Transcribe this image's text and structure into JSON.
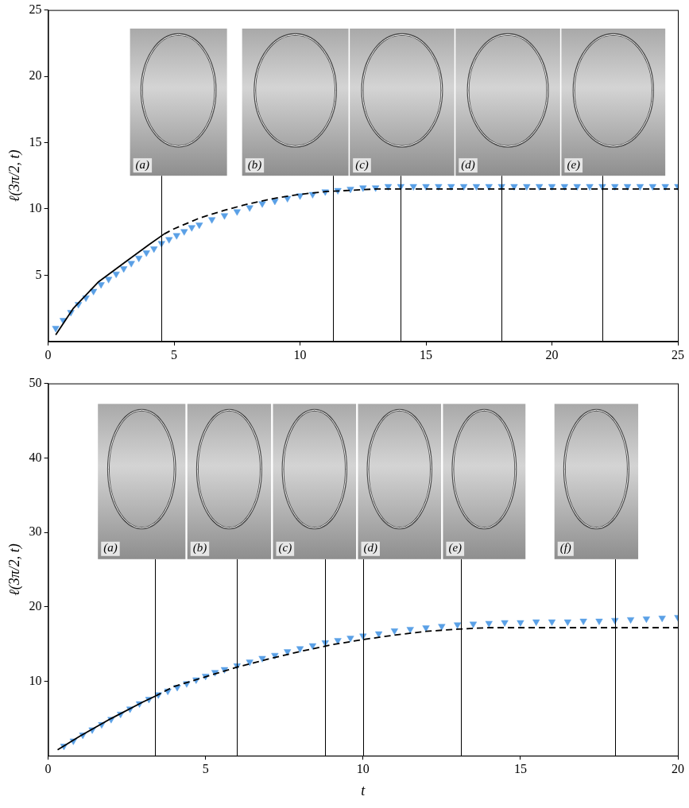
{
  "chart_data": [
    {
      "type": "scatter",
      "y_label": "ℓ(3π/2, t)",
      "xlim": [
        0,
        25
      ],
      "xticks": [
        0,
        5,
        10,
        15,
        20,
        25
      ],
      "ylim": [
        0,
        25
      ],
      "yticks": [
        5,
        10,
        15,
        20,
        25
      ],
      "grid": false,
      "series": [
        {
          "type": "scatter",
          "color": "#5aa0e6",
          "marker": "triangle-down",
          "x": [
            0.3,
            0.6,
            0.9,
            1.2,
            1.5,
            1.8,
            2.1,
            2.4,
            2.7,
            3.0,
            3.3,
            3.6,
            3.9,
            4.2,
            4.5,
            4.8,
            5.1,
            5.4,
            5.7,
            6.0,
            6.5,
            7.0,
            7.5,
            8.0,
            8.5,
            9.0,
            9.5,
            10.0,
            10.5,
            11.0,
            11.5,
            12.0,
            12.5,
            13.0,
            13.5,
            14.0,
            14.5,
            15.0,
            15.5,
            16.0,
            16.5,
            17.0,
            17.5,
            18.0,
            18.5,
            19.0,
            19.5,
            20.0,
            20.5,
            21.0,
            21.5,
            22.0,
            22.5,
            23.0,
            23.5,
            24.0,
            24.5,
            25.0
          ],
          "values": [
            1.0,
            1.6,
            2.2,
            2.8,
            3.3,
            3.8,
            4.3,
            4.7,
            5.1,
            5.5,
            5.9,
            6.3,
            6.7,
            7.0,
            7.4,
            7.7,
            8.0,
            8.3,
            8.6,
            8.8,
            9.2,
            9.5,
            9.8,
            10.1,
            10.4,
            10.6,
            10.8,
            11.0,
            11.1,
            11.3,
            11.4,
            11.5,
            11.6,
            11.6,
            11.7,
            11.7,
            11.7,
            11.7,
            11.7,
            11.7,
            11.7,
            11.7,
            11.7,
            11.7,
            11.7,
            11.7,
            11.7,
            11.7,
            11.7,
            11.7,
            11.7,
            11.7,
            11.7,
            11.7,
            11.7,
            11.7,
            11.7,
            11.7
          ]
        },
        {
          "type": "line",
          "color": "#000000",
          "line_style": "solid",
          "x": [
            0.3,
            1.0,
            2.0,
            3.0,
            4.0,
            4.6
          ],
          "values": [
            0.5,
            2.5,
            4.5,
            5.9,
            7.3,
            8.1
          ]
        },
        {
          "type": "line",
          "color": "#000000",
          "line_style": "dashed",
          "x": [
            4.6,
            5.0,
            6.0,
            7.0,
            8.0,
            9.0,
            10.0,
            11.0,
            12.0,
            13.0,
            14.0,
            25.0
          ],
          "values": [
            8.1,
            8.5,
            9.3,
            9.9,
            10.4,
            10.8,
            11.1,
            11.3,
            11.4,
            11.5,
            11.5,
            11.5
          ]
        }
      ],
      "snapshots": [
        {
          "t": 4.5,
          "label": "(a)"
        },
        {
          "t": 11.3,
          "label": "(b)"
        },
        {
          "t": 14.0,
          "label": "(c)"
        },
        {
          "t": 18.0,
          "label": "(d)"
        },
        {
          "t": 22.0,
          "label": "(e)"
        }
      ]
    },
    {
      "type": "scatter",
      "x_label": "t",
      "y_label": "ℓ(3π/2, t)",
      "xlim": [
        0,
        20
      ],
      "xticks": [
        0,
        5,
        10,
        15,
        20
      ],
      "ylim": [
        0,
        50
      ],
      "yticks": [
        10,
        20,
        30,
        40,
        50
      ],
      "grid": false,
      "series": [
        {
          "type": "scatter",
          "color": "#5aa0e6",
          "marker": "triangle-down",
          "x": [
            0.5,
            0.8,
            1.1,
            1.4,
            1.7,
            2.0,
            2.3,
            2.6,
            2.9,
            3.2,
            3.5,
            3.8,
            4.1,
            4.4,
            4.7,
            5.0,
            5.3,
            5.6,
            6.0,
            6.4,
            6.8,
            7.2,
            7.6,
            8.0,
            8.4,
            8.8,
            9.2,
            9.6,
            10.0,
            10.5,
            11.0,
            11.5,
            12.0,
            12.5,
            13.0,
            13.5,
            14.0,
            14.5,
            15.0,
            15.5,
            16.0,
            16.5,
            17.0,
            17.5,
            18.0,
            18.5,
            19.0,
            19.5,
            20.0
          ],
          "values": [
            1.3,
            2.0,
            2.8,
            3.5,
            4.2,
            4.9,
            5.6,
            6.3,
            7.0,
            7.6,
            8.2,
            8.7,
            9.2,
            9.7,
            10.2,
            10.7,
            11.2,
            11.6,
            12.1,
            12.6,
            13.1,
            13.5,
            14.0,
            14.4,
            14.8,
            15.2,
            15.5,
            15.8,
            16.1,
            16.4,
            16.8,
            17.0,
            17.2,
            17.4,
            17.6,
            17.7,
            17.8,
            17.9,
            17.9,
            18.0,
            18.0,
            18.0,
            18.1,
            18.1,
            18.2,
            18.3,
            18.4,
            18.5,
            18.6
          ]
        },
        {
          "type": "line",
          "color": "#000000",
          "line_style": "solid",
          "x": [
            0.3,
            1.0,
            2.0,
            3.0,
            3.4
          ],
          "values": [
            0.8,
            2.6,
            5.0,
            7.2,
            8.0
          ]
        },
        {
          "type": "line",
          "color": "#000000",
          "line_style": "dashed",
          "x": [
            3.4,
            4.0,
            5.0,
            6.0,
            7.0,
            8.0,
            9.0,
            10.0,
            11.0,
            12.0,
            13.0,
            14.0,
            20.0
          ],
          "values": [
            8.0,
            9.3,
            10.6,
            11.9,
            13.0,
            14.0,
            14.9,
            15.6,
            16.2,
            16.7,
            17.0,
            17.2,
            17.2
          ]
        }
      ],
      "snapshots": [
        {
          "t": 3.4,
          "label": "(a)"
        },
        {
          "t": 6.0,
          "label": "(b)"
        },
        {
          "t": 8.8,
          "label": "(c)"
        },
        {
          "t": 10.0,
          "label": "(d)"
        },
        {
          "t": 13.1,
          "label": "(e)"
        },
        {
          "t": 18.0,
          "label": "(f)"
        }
      ]
    }
  ]
}
